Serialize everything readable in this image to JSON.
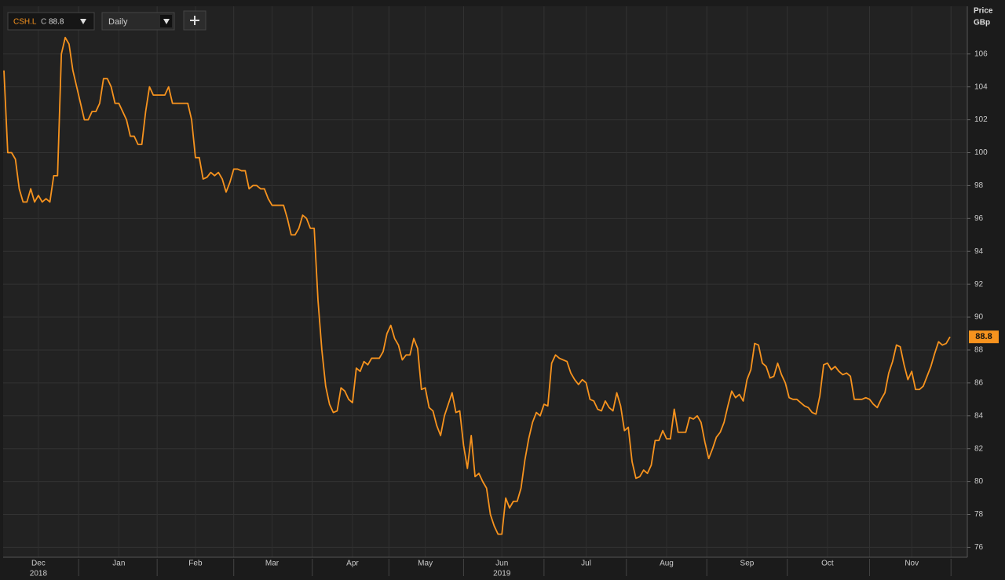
{
  "chart_data": {
    "type": "line",
    "symbol": "CSH.L",
    "close_prefix": "C",
    "interval": "Daily",
    "y_axis_title": "Price",
    "y_axis_unit": "GBp",
    "color": "#f7931e",
    "grid": true,
    "ylim": [
      75.4,
      108.9
    ],
    "yticks": [
      76,
      78,
      80,
      82,
      84,
      86,
      88,
      90,
      92,
      94,
      96,
      98,
      100,
      102,
      104,
      106
    ],
    "year_labels": [
      "2018",
      "2019"
    ],
    "categories": [
      null,
      null,
      null,
      null,
      null,
      null,
      null,
      null,
      null,
      "Dec",
      null,
      null,
      null,
      null,
      null,
      null,
      null,
      null,
      null,
      null,
      null,
      null,
      null,
      null,
      null,
      null,
      null,
      null,
      null,
      null,
      "Jan",
      null,
      null,
      null,
      null,
      null,
      null,
      null,
      null,
      null,
      null,
      null,
      null,
      null,
      null,
      null,
      null,
      null,
      null,
      null,
      "Feb",
      null,
      null,
      null,
      null,
      null,
      null,
      null,
      null,
      null,
      null,
      null,
      null,
      null,
      null,
      null,
      null,
      null,
      null,
      null,
      "Mar",
      null,
      null,
      null,
      null,
      null,
      null,
      null,
      null,
      null,
      null,
      null,
      null,
      null,
      null,
      null,
      null,
      null,
      null,
      null,
      null,
      "Apr",
      null,
      null,
      null,
      null,
      null,
      null,
      null,
      null,
      null,
      null,
      null,
      null,
      null,
      null,
      null,
      null,
      null,
      null,
      "May",
      null,
      null,
      null,
      null,
      null,
      null,
      null,
      null,
      null,
      null,
      null,
      null,
      null,
      null,
      null,
      null,
      null,
      null,
      null,
      "Jun",
      null,
      null,
      null,
      null,
      null,
      null,
      null,
      null,
      null,
      null,
      null,
      null,
      null,
      null,
      null,
      null,
      null,
      null,
      null,
      null,
      null,
      "Jul",
      null,
      null,
      null,
      null,
      null,
      null,
      null,
      null,
      null,
      null,
      null,
      null,
      null,
      null,
      null,
      null,
      null,
      null,
      null,
      null,
      "Aug",
      null,
      null,
      null,
      null,
      null,
      null,
      null,
      null,
      null,
      null,
      null,
      null,
      null,
      null,
      null,
      null,
      null,
      null,
      null,
      null,
      "Sep",
      null,
      null,
      null,
      null,
      null,
      null,
      null,
      null,
      null,
      null,
      null,
      null,
      null,
      null,
      null,
      null,
      null,
      null,
      null,
      null,
      "Oct",
      null,
      null,
      null,
      null,
      null,
      null,
      null,
      null,
      null,
      null,
      null,
      null,
      null,
      null,
      null,
      null,
      null,
      null,
      null,
      null,
      null,
      "Nov",
      null,
      null,
      null,
      null,
      null,
      null,
      null,
      null,
      null,
      null
    ],
    "values": [
      105,
      100,
      100,
      99.6,
      97.8,
      97,
      97,
      97.8,
      97,
      97.4,
      97,
      97.2,
      97,
      98.6,
      98.6,
      106,
      107,
      106.6,
      105,
      104,
      103,
      102,
      102,
      102.5,
      102.5,
      103,
      104.5,
      104.5,
      104,
      103,
      103,
      102.5,
      102,
      101,
      101,
      100.5,
      100.5,
      102.5,
      104,
      103.5,
      103.5,
      103.5,
      103.5,
      104,
      103,
      103,
      103,
      103,
      103,
      102,
      99.7,
      99.7,
      98.4,
      98.5,
      98.8,
      98.6,
      98.8,
      98.4,
      97.6,
      98.2,
      99,
      99,
      98.9,
      98.9,
      97.8,
      98,
      98,
      97.8,
      97.8,
      97.2,
      96.8,
      96.8,
      96.8,
      96.8,
      96,
      95,
      95,
      95.4,
      96.2,
      96,
      95.4,
      95.4,
      91,
      88,
      85.8,
      84.7,
      84.2,
      84.3,
      85.7,
      85.5,
      85,
      84.8,
      86.9,
      86.7,
      87.3,
      87.1,
      87.5,
      87.5,
      87.5,
      87.9,
      89,
      89.5,
      88.7,
      88.3,
      87.4,
      87.7,
      87.7,
      88.7,
      88.1,
      85.6,
      85.7,
      84.5,
      84.3,
      83.4,
      82.8,
      84,
      84.7,
      85.4,
      84.2,
      84.3,
      82.2,
      80.8,
      82.8,
      80.3,
      80.5,
      80,
      79.6,
      78,
      77.3,
      76.8,
      76.8,
      79,
      78.4,
      78.8,
      78.8,
      79.6,
      81.3,
      82.6,
      83.6,
      84.2,
      84,
      84.7,
      84.6,
      87.2,
      87.7,
      87.5,
      87.4,
      87.3,
      86.6,
      86.2,
      85.9,
      86.2,
      86,
      85,
      84.9,
      84.4,
      84.3,
      84.9,
      84.5,
      84.3,
      85.4,
      84.6,
      83.1,
      83.3,
      81.2,
      80.2,
      80.3,
      80.7,
      80.5,
      81,
      82.5,
      82.5,
      83.1,
      82.6,
      82.6,
      84.4,
      83,
      83,
      83,
      83.9,
      83.8,
      84,
      83.6,
      82.4,
      81.4,
      82,
      82.7,
      83,
      83.6,
      84.6,
      85.5,
      85.1,
      85.3,
      84.9,
      86.2,
      86.8,
      88.4,
      88.3,
      87.2,
      87,
      86.3,
      86.4,
      87.2,
      86.5,
      86,
      85.1,
      85,
      85,
      84.8,
      84.6,
      84.5,
      84.2,
      84.1,
      85.2,
      87.1,
      87.2,
      86.8,
      87,
      86.7,
      86.5,
      86.6,
      86.4,
      85,
      85,
      85,
      85.1,
      85,
      84.7,
      84.5,
      85,
      85.4,
      86.6,
      87.3,
      88.3,
      88.2,
      87.1,
      86.2,
      86.7,
      85.6,
      85.6,
      85.8,
      86.4,
      87,
      87.8,
      88.5,
      88.3,
      88.4,
      88.8
    ]
  }
}
